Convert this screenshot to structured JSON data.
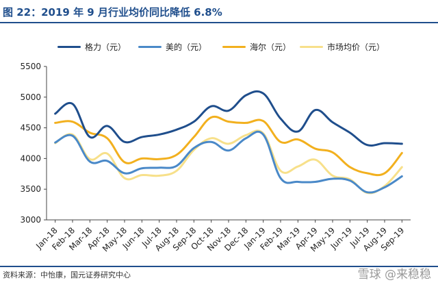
{
  "header": {
    "title": "图 22：2019 年 9 月行业均价同比降低 6.8%"
  },
  "footer": {
    "source": "资料来源：中怡康，国元证券研究中心",
    "watermark": "雪球 @来稳稳"
  },
  "colors": {
    "brand": "#1f4e8c",
    "geli": "#1f4e8c",
    "meidi": "#4a89c8",
    "haier": "#f2b01e",
    "market": "#f7e08a"
  },
  "chart_data": {
    "type": "line",
    "title": "",
    "xlabel": "",
    "ylabel": "",
    "ylim": [
      3000,
      5500
    ],
    "yticks": [
      3000,
      3500,
      4000,
      4500,
      5000,
      5500
    ],
    "grid": false,
    "legend_position": "top",
    "categories": [
      "Jan-18",
      "Feb-18",
      "Mar-18",
      "Apr-18",
      "May-18",
      "Jun-18",
      "Jul-18",
      "Aug-18",
      "Sep-18",
      "Oct-18",
      "Nov-18",
      "Dec-18",
      "Jan-19",
      "Feb-19",
      "Mar-19",
      "Apr-19",
      "May-19",
      "Jun-19",
      "Jul-19",
      "Aug-19",
      "Sep-19"
    ],
    "series": [
      {
        "name": "格力（元）",
        "color": "#1f4e8c",
        "values": [
          4730,
          4890,
          4350,
          4530,
          4270,
          4350,
          4390,
          4470,
          4600,
          4850,
          4780,
          5030,
          5060,
          4650,
          4440,
          4790,
          4590,
          4420,
          4220,
          4250,
          4240
        ]
      },
      {
        "name": "美的（元）",
        "color": "#4a89c8",
        "values": [
          4260,
          4370,
          3950,
          3960,
          3760,
          3840,
          3850,
          3880,
          4170,
          4270,
          4130,
          4330,
          4390,
          3680,
          3620,
          3620,
          3670,
          3640,
          3450,
          3530,
          3710
        ]
      },
      {
        "name": "海尔（元）",
        "color": "#f2b01e",
        "values": [
          4580,
          4600,
          4420,
          4330,
          3940,
          4000,
          3990,
          4060,
          4350,
          4670,
          4600,
          4580,
          4610,
          4270,
          4310,
          4160,
          4100,
          3860,
          3760,
          3760,
          4090
        ]
      },
      {
        "name": "市场均价（元）",
        "color": "#f7e08a",
        "values": [
          4250,
          4390,
          3990,
          4080,
          3680,
          3730,
          3720,
          3800,
          4140,
          4330,
          4240,
          4380,
          4410,
          3800,
          3870,
          3980,
          3720,
          3660,
          3440,
          3550,
          3860
        ]
      }
    ]
  }
}
